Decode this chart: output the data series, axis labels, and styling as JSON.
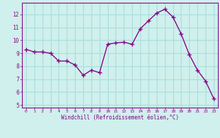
{
  "x": [
    0,
    1,
    2,
    3,
    4,
    5,
    6,
    7,
    8,
    9,
    10,
    11,
    12,
    13,
    14,
    15,
    16,
    17,
    18,
    19,
    20,
    21,
    22,
    23
  ],
  "y": [
    9.3,
    9.1,
    9.1,
    9.0,
    8.4,
    8.4,
    8.1,
    7.3,
    7.7,
    7.5,
    9.7,
    9.8,
    9.85,
    9.7,
    10.9,
    11.5,
    12.1,
    12.4,
    11.8,
    10.5,
    8.9,
    7.7,
    6.85,
    5.5
  ],
  "line_color": "#880088",
  "marker": "+",
  "marker_size": 4,
  "marker_lw": 1.0,
  "bg_color": "#cff0ec",
  "grid_color": "#aadddd",
  "xlabel": "Windchill (Refroidissement éolien,°C)",
  "ylabel_ticks": [
    5,
    6,
    7,
    8,
    9,
    10,
    11,
    12
  ],
  "xlabel_ticks": [
    0,
    1,
    2,
    3,
    4,
    5,
    6,
    7,
    8,
    9,
    10,
    11,
    12,
    13,
    14,
    15,
    16,
    17,
    18,
    19,
    20,
    21,
    22,
    23
  ],
  "ylim": [
    4.8,
    12.9
  ],
  "xlim": [
    -0.5,
    23.5
  ],
  "label_color": "#880088",
  "tick_color": "#880088",
  "font_family": "monospace",
  "tick_fontsize_x": 4.5,
  "tick_fontsize_y": 5.5,
  "xlabel_fontsize": 5.5,
  "linewidth": 1.0
}
